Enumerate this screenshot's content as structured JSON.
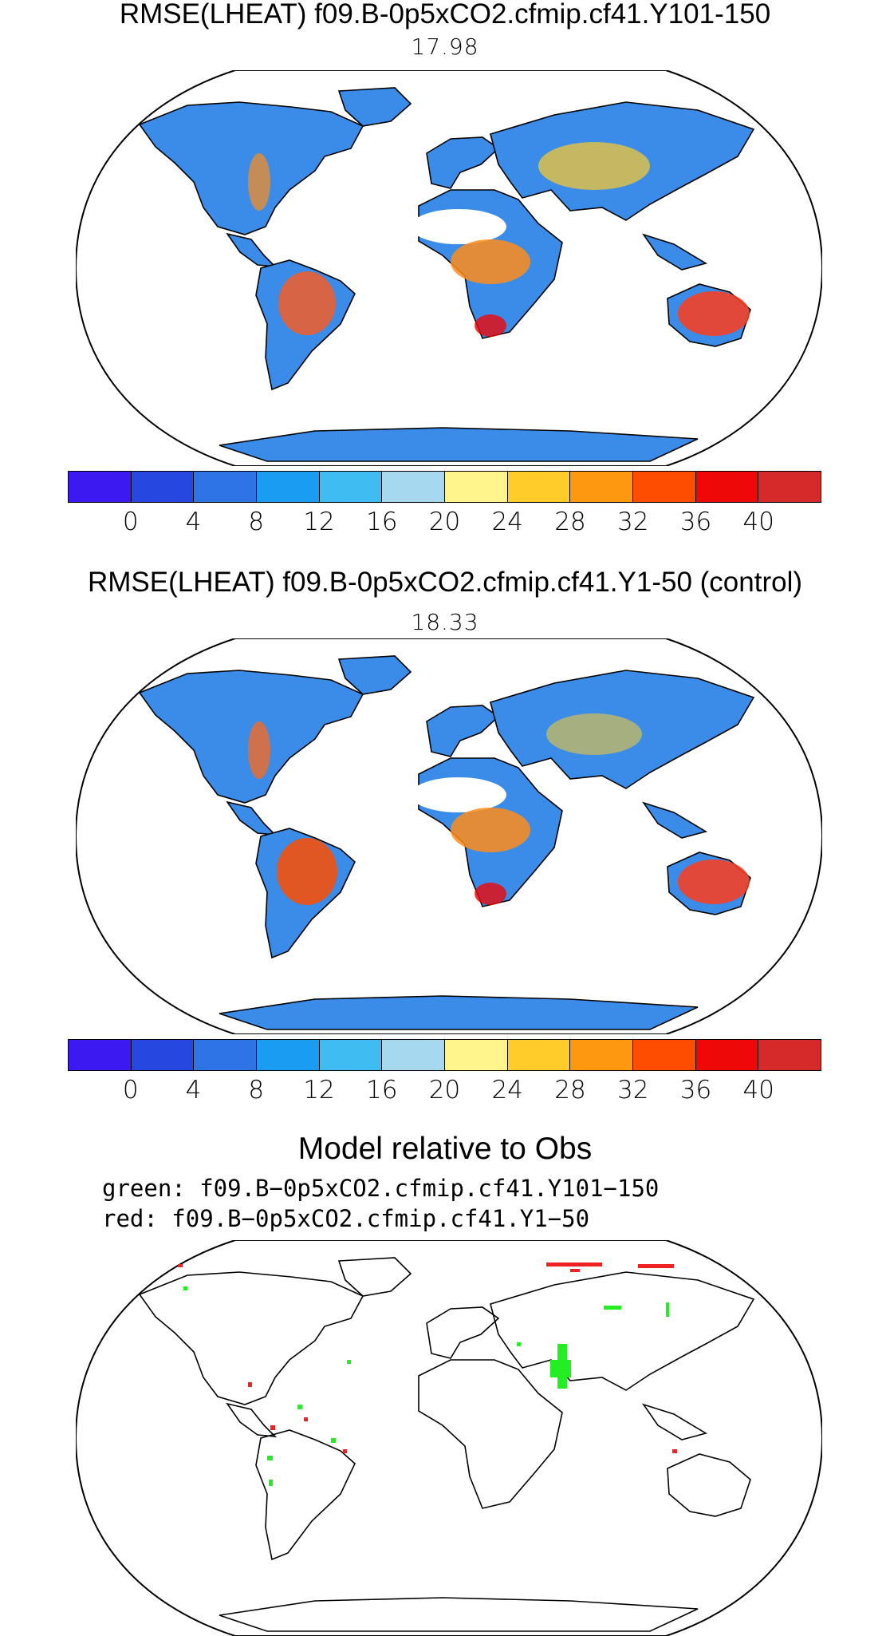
{
  "panels": [
    {
      "title": "RMSE(LHEAT) f09.B-0p5xCO2.cfmip.cf41.Y101-150",
      "value": "17.98"
    },
    {
      "title": "RMSE(LHEAT) f09.B-0p5xCO2.cfmip.cf41.Y1-50 (control)",
      "value": "18.33"
    }
  ],
  "colorbar": {
    "colors": [
      "#3b19f0",
      "#2647e0",
      "#2f74e6",
      "#1a9cf2",
      "#3fbcf2",
      "#a6d8ef",
      "#fff58c",
      "#ffcc29",
      "#ff9811",
      "#ff4d00",
      "#ee0808",
      "#d62a2a"
    ],
    "labels": [
      "0",
      "4",
      "8",
      "12",
      "16",
      "20",
      "24",
      "28",
      "32",
      "36",
      "40"
    ]
  },
  "comparison": {
    "title": "Model relative to Obs",
    "green_label": "green:  f09.B−0p5xCO2.cfmip.cf41.Y101−150",
    "red_label": "red:  f09.B−0p5xCO2.cfmip.cf41.Y1−50",
    "green_color": "#22ee22",
    "red_color": "#ee2222"
  },
  "colors": {
    "ocean": "#ffffff",
    "coast": "#000000"
  }
}
